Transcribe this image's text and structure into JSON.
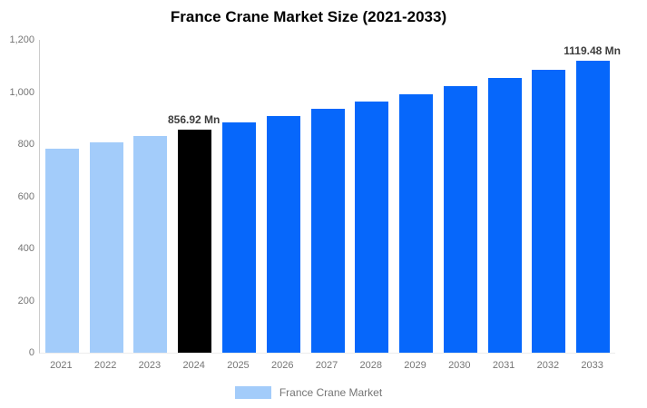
{
  "title": "France Crane Market Size (2021-2033)",
  "legend": {
    "label": "France Crane Market",
    "swatch_color": "#a3ccfa"
  },
  "chart_data": {
    "type": "bar",
    "title": "France Crane Market Size (2021-2033)",
    "xlabel": "",
    "ylabel": "",
    "categories": [
      "2021",
      "2022",
      "2023",
      "2024",
      "2025",
      "2026",
      "2027",
      "2028",
      "2029",
      "2030",
      "2031",
      "2032",
      "2033"
    ],
    "values": [
      784,
      808,
      832,
      856.92,
      883,
      909,
      936,
      964,
      993,
      1023,
      1054,
      1085,
      1119.48
    ],
    "bar_types": [
      "historical",
      "historical",
      "historical",
      "current",
      "forecast",
      "forecast",
      "forecast",
      "forecast",
      "forecast",
      "forecast",
      "forecast",
      "forecast",
      "forecast"
    ],
    "colors": {
      "historical": "#a3ccfa",
      "current": "#000000",
      "forecast": "#0667fb"
    },
    "data_labels": [
      {
        "index": 3,
        "text": "856.92 Mn"
      },
      {
        "index": 12,
        "text": "1119.48 Mn"
      }
    ],
    "ylim": [
      0,
      1200
    ],
    "ytick_values": [
      0,
      200,
      400,
      600,
      800,
      1000,
      1200
    ],
    "ytick_labels": [
      "0",
      "200",
      "400",
      "600",
      "800",
      "1,000",
      "1,200"
    ],
    "grid": false,
    "legend_position": "bottom",
    "unit": "Mn"
  },
  "axis_colors": {
    "y_axis_line": "#cccccc",
    "baseline": "#ececec",
    "tick_text": "#757575"
  }
}
